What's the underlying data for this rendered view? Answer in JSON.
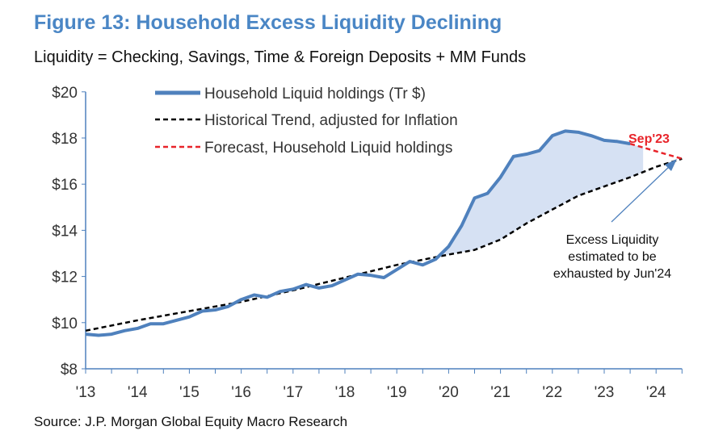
{
  "title": "Figure 13: Household Excess Liquidity Declining",
  "subtitle": "Liquidity = Checking, Savings, Time & Foreign Deposits + MM Funds",
  "source": "Source: J.P. Morgan Global Equity Macro Research",
  "colors": {
    "household": "#4f81bd",
    "trend": "#000000",
    "forecast": "#e8242a",
    "fill": "#d6e1f3",
    "title": "#4a86c5"
  },
  "chart_data": {
    "type": "line",
    "ylim": [
      8,
      20
    ],
    "xlim": [
      2013,
      2024.5
    ],
    "y_ticks": [
      {
        "v": 20,
        "label": "$20"
      },
      {
        "v": 18,
        "label": "$18"
      },
      {
        "v": 16,
        "label": "$16"
      },
      {
        "v": 14,
        "label": "$14"
      },
      {
        "v": 12,
        "label": "$12"
      },
      {
        "v": 10,
        "label": "$10"
      },
      {
        "v": 8,
        "label": "$8"
      }
    ],
    "x_ticks": [
      {
        "v": 2013,
        "label": "'13"
      },
      {
        "v": 2014,
        "label": "'14"
      },
      {
        "v": 2015,
        "label": "'15"
      },
      {
        "v": 2016,
        "label": "'16"
      },
      {
        "v": 2017,
        "label": "'17"
      },
      {
        "v": 2018,
        "label": "'18"
      },
      {
        "v": 2019,
        "label": "'19"
      },
      {
        "v": 2020,
        "label": "'20"
      },
      {
        "v": 2021,
        "label": "'21"
      },
      {
        "v": 2022,
        "label": "'22"
      },
      {
        "v": 2023,
        "label": "'23"
      },
      {
        "v": 2024,
        "label": "'24"
      }
    ],
    "legend": [
      "Household Liquid holdings (Tr $)",
      "Historical Trend, adjusted for Inflation",
      "Forecast, Household Liquid holdings"
    ],
    "legend_position": "top-center",
    "series": [
      {
        "name": "Household Liquid holdings (Tr $)",
        "x": [
          2013,
          2013.25,
          2013.5,
          2013.75,
          2014,
          2014.25,
          2014.5,
          2014.75,
          2015,
          2015.25,
          2015.5,
          2015.75,
          2016,
          2016.25,
          2016.5,
          2016.75,
          2017,
          2017.25,
          2017.5,
          2017.75,
          2018,
          2018.25,
          2018.5,
          2018.75,
          2019,
          2019.25,
          2019.5,
          2019.75,
          2020,
          2020.25,
          2020.5,
          2020.75,
          2021,
          2021.25,
          2021.5,
          2021.75,
          2022,
          2022.25,
          2022.5,
          2022.75,
          2023,
          2023.25,
          2023.5
        ],
        "y": [
          9.5,
          9.45,
          9.5,
          9.65,
          9.75,
          9.95,
          9.95,
          10.1,
          10.25,
          10.5,
          10.55,
          10.7,
          11.0,
          11.2,
          11.1,
          11.35,
          11.45,
          11.65,
          11.5,
          11.6,
          11.85,
          12.1,
          12.05,
          11.95,
          12.3,
          12.65,
          12.5,
          12.75,
          13.3,
          14.2,
          15.4,
          15.6,
          16.3,
          17.2,
          17.3,
          17.45,
          18.1,
          18.3,
          18.25,
          18.1,
          17.9,
          17.85,
          17.75
        ]
      },
      {
        "name": "Historical Trend, adjusted for Inflation",
        "x": [
          2013,
          2014,
          2015,
          2016,
          2017,
          2018,
          2019,
          2020,
          2020.5,
          2021,
          2021.5,
          2022,
          2022.5,
          2023,
          2023.5,
          2024,
          2024.5
        ],
        "y": [
          9.65,
          10.1,
          10.5,
          10.9,
          11.4,
          11.95,
          12.5,
          12.95,
          13.15,
          13.6,
          14.3,
          14.9,
          15.5,
          15.9,
          16.3,
          16.75,
          17.1
        ]
      },
      {
        "name": "Forecast, Household Liquid holdings",
        "x": [
          2023.5,
          2024.5
        ],
        "y": [
          17.75,
          17.1
        ]
      }
    ],
    "shaded_region": {
      "label": "excess liquidity",
      "x_from": 2019.75,
      "x_to": 2023.75
    },
    "annotations": [
      {
        "text": "Sep'23",
        "color": "#e8242a"
      },
      {
        "text_lines": [
          "Excess Liquidity",
          "estimated to be",
          "exhausted by Jun'24"
        ]
      }
    ]
  }
}
